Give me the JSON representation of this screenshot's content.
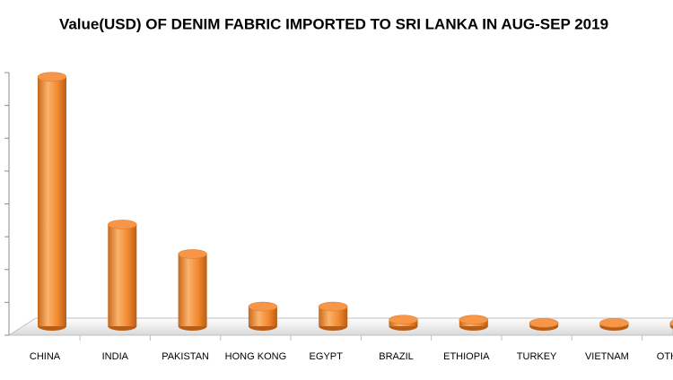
{
  "chart_data": {
    "type": "bar",
    "title": "Value(USD) OF DENIM FABRIC IMPORTED TO SRI LANKA IN AUG-SEP 2019",
    "categories": [
      "CHINA",
      "INDIA",
      "PAKISTAN",
      "HONG KONG",
      "EGYPT",
      "BRAZIL",
      "ETHIOPIA",
      "TURKEY",
      "VIETNAM",
      "OTHERS"
    ],
    "values": [
      7.6,
      3.1,
      2.2,
      0.6,
      0.6,
      0.2,
      0.2,
      0.1,
      0.1,
      0.1
    ],
    "color": "#f79646",
    "ylim": [
      0,
      8
    ],
    "yticks": [
      0,
      1,
      2,
      3,
      4,
      5,
      6,
      7,
      8
    ]
  }
}
